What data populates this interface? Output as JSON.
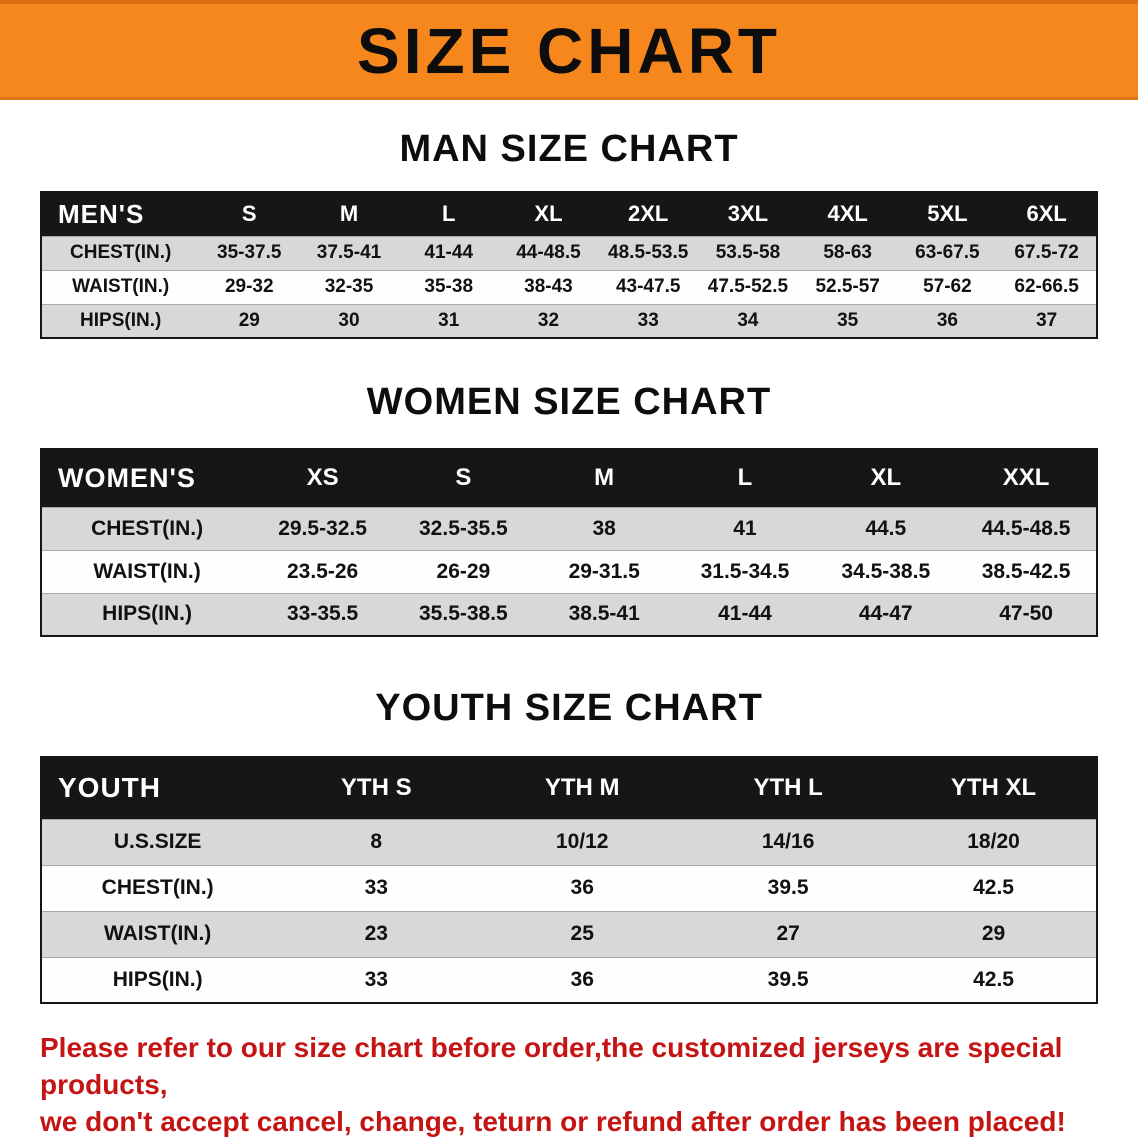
{
  "banner": {
    "title": "SIZE CHART"
  },
  "colors": {
    "banner_orange": "#f6871d",
    "table_header_black": "#161616",
    "row_stripe_gray": "#d8d8d8",
    "disclaimer_red": "#c51414"
  },
  "chart_data": [
    {
      "type": "table",
      "title": "MAN SIZE CHART",
      "columns": [
        "MEN'S",
        "S",
        "M",
        "L",
        "XL",
        "2XL",
        "3XL",
        "4XL",
        "5XL",
        "6XL"
      ],
      "rows": [
        [
          "CHEST(IN.)",
          "35-37.5",
          "37.5-41",
          "41-44",
          "44-48.5",
          "48.5-53.5",
          "53.5-58",
          "58-63",
          "63-67.5",
          "67.5-72"
        ],
        [
          "WAIST(IN.)",
          "29-32",
          "32-35",
          "35-38",
          "38-43",
          "43-47.5",
          "47.5-52.5",
          "52.5-57",
          "57-62",
          "62-66.5"
        ],
        [
          "HIPS(IN.)",
          "29",
          "30",
          "31",
          "32",
          "33",
          "34",
          "35",
          "36",
          "37"
        ]
      ]
    },
    {
      "type": "table",
      "title": "WOMEN SIZE CHART",
      "columns": [
        "WOMEN'S",
        "XS",
        "S",
        "M",
        "L",
        "XL",
        "XXL"
      ],
      "rows": [
        [
          "CHEST(IN.)",
          "29.5-32.5",
          "32.5-35.5",
          "38",
          "41",
          "44.5",
          "44.5-48.5"
        ],
        [
          "WAIST(IN.)",
          "23.5-26",
          "26-29",
          "29-31.5",
          "31.5-34.5",
          "34.5-38.5",
          "38.5-42.5"
        ],
        [
          "HIPS(IN.)",
          "33-35.5",
          "35.5-38.5",
          "38.5-41",
          "41-44",
          "44-47",
          "47-50"
        ]
      ]
    },
    {
      "type": "table",
      "title": "YOUTH SIZE CHART",
      "columns": [
        "YOUTH",
        "YTH S",
        "YTH M",
        "YTH L",
        "YTH XL"
      ],
      "rows": [
        [
          "U.S.SIZE",
          "8",
          "10/12",
          "14/16",
          "18/20"
        ],
        [
          "CHEST(IN.)",
          "33",
          "36",
          "39.5",
          "42.5"
        ],
        [
          "WAIST(IN.)",
          "23",
          "25",
          "27",
          "29"
        ],
        [
          "HIPS(IN.)",
          "33",
          "36",
          "39.5",
          "42.5"
        ]
      ]
    }
  ],
  "disclaimer": {
    "line1": "Please refer to our size chart before order,the customized jerseys are special products,",
    "line2": "we don't accept cancel, change, teturn or refund after order has been placed!"
  }
}
